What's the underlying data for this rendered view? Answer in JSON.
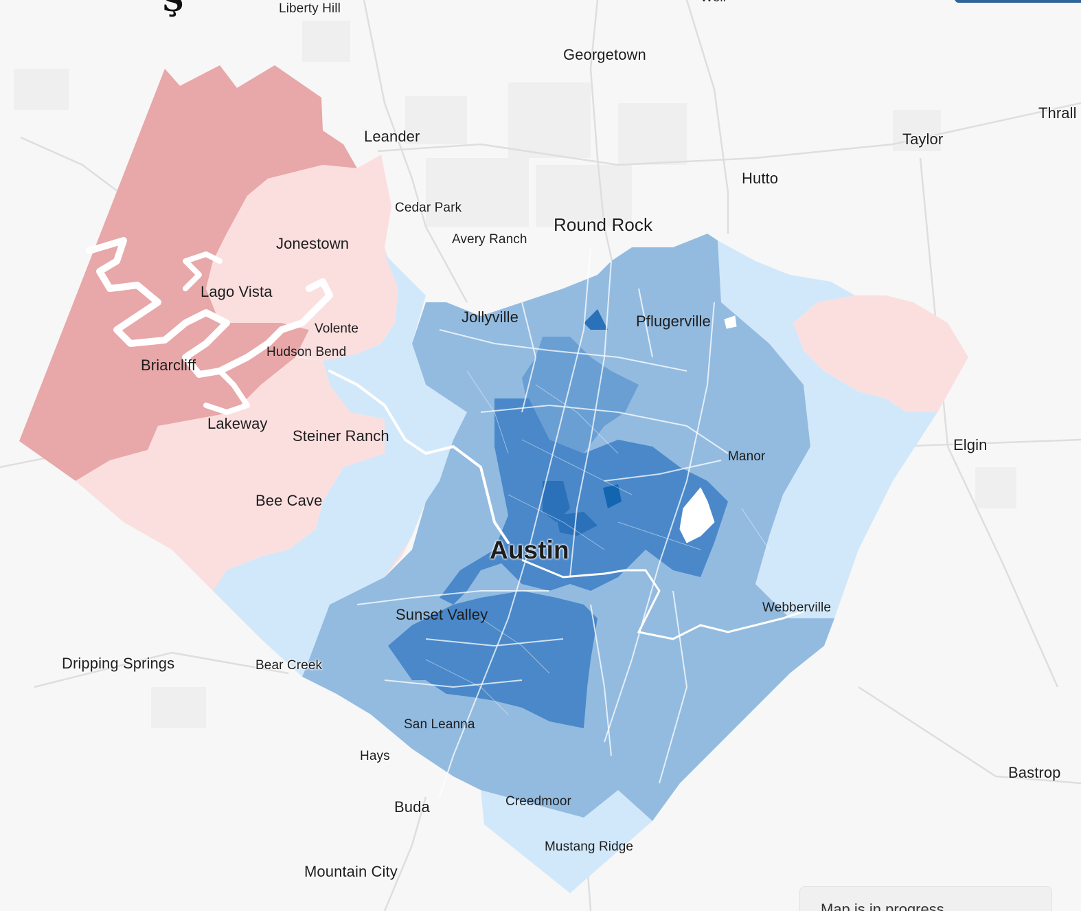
{
  "map": {
    "colors": {
      "background": "#f7f7f7",
      "dark_red": "#e8a7a8",
      "light_red": "#fbdfdf",
      "lightest_blue": "#d1e8fa",
      "light_blue": "#93bbe0",
      "mid_blue": "#6a9fd3",
      "blue": "#4a88c9",
      "dark_blue": "#2a71ba",
      "darkest_blue": "#1266b0",
      "water": "#ffffff",
      "road": "#ffffff"
    },
    "places": [
      {
        "id": "liberty-hill",
        "label": "Liberty Hill"
      },
      {
        "id": "weir",
        "label": "Weir"
      },
      {
        "id": "georgetown",
        "label": "Georgetown"
      },
      {
        "id": "leander",
        "label": "Leander"
      },
      {
        "id": "thrall",
        "label": "Thrall"
      },
      {
        "id": "taylor",
        "label": "Taylor"
      },
      {
        "id": "hutto",
        "label": "Hutto"
      },
      {
        "id": "cedar-park",
        "label": "Cedar Park"
      },
      {
        "id": "round-rock",
        "label": "Round Rock"
      },
      {
        "id": "avery-ranch",
        "label": "Avery Ranch"
      },
      {
        "id": "jonestown",
        "label": "Jonestown"
      },
      {
        "id": "lago-vista",
        "label": "Lago Vista"
      },
      {
        "id": "jollyville",
        "label": "Jollyville"
      },
      {
        "id": "pflugerville",
        "label": "Pflugerville"
      },
      {
        "id": "volente",
        "label": "Volente"
      },
      {
        "id": "hudson-bend",
        "label": "Hudson Bend"
      },
      {
        "id": "briarcliff",
        "label": "Briarcliff"
      },
      {
        "id": "lakeway",
        "label": "Lakeway"
      },
      {
        "id": "steiner-ranch",
        "label": "Steiner Ranch"
      },
      {
        "id": "elgin",
        "label": "Elgin"
      },
      {
        "id": "manor",
        "label": "Manor"
      },
      {
        "id": "bee-cave",
        "label": "Bee Cave"
      },
      {
        "id": "austin",
        "label": "Austin"
      },
      {
        "id": "sunset-valley",
        "label": "Sunset Valley"
      },
      {
        "id": "webberville",
        "label": "Webberville"
      },
      {
        "id": "dripping-springs",
        "label": "Dripping Springs"
      },
      {
        "id": "bear-creek",
        "label": "Bear Creek"
      },
      {
        "id": "san-leanna",
        "label": "San Leanna"
      },
      {
        "id": "hays",
        "label": "Hays"
      },
      {
        "id": "bastrop",
        "label": "Bastrop"
      },
      {
        "id": "buda",
        "label": "Buda"
      },
      {
        "id": "creedmoor",
        "label": "Creedmoor"
      },
      {
        "id": "mustang-ridge",
        "label": "Mustang Ridge"
      },
      {
        "id": "mountain-city",
        "label": "Mountain City"
      }
    ],
    "note": "Map is in progress"
  }
}
